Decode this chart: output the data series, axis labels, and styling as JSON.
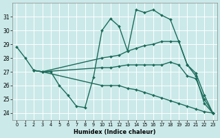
{
  "background_color": "#cbe9e9",
  "grid_color": "#b8d8d8",
  "line_color": "#1a6b5a",
  "xlabel": "Humidex (Indice chaleur)",
  "xlim": [
    -0.5,
    23.5
  ],
  "ylim": [
    23.5,
    32.0
  ],
  "yticks": [
    24,
    25,
    26,
    27,
    28,
    29,
    30,
    31
  ],
  "xticks": [
    0,
    1,
    2,
    3,
    4,
    5,
    6,
    7,
    8,
    9,
    10,
    11,
    12,
    13,
    14,
    15,
    16,
    17,
    18,
    19,
    20,
    21,
    22,
    23
  ],
  "lines": [
    {
      "x": [
        0,
        1,
        2,
        3,
        4,
        5,
        6,
        7,
        8,
        9,
        10,
        11,
        12,
        13,
        14,
        15,
        16,
        17,
        18,
        19,
        20,
        21,
        22,
        23
      ],
      "y": [
        28.8,
        28.0,
        27.1,
        27.0,
        27.0,
        26.0,
        25.3,
        24.5,
        24.4,
        26.6,
        30.0,
        30.85,
        30.3,
        28.5,
        31.5,
        31.3,
        31.5,
        31.1,
        30.8,
        29.2,
        27.5,
        26.9,
        25.3,
        24.0
      ]
    },
    {
      "x": [
        2,
        3,
        10,
        11,
        12,
        13,
        14,
        15,
        16,
        17,
        18,
        19,
        20,
        21,
        22,
        23
      ],
      "y": [
        27.1,
        27.0,
        28.0,
        28.1,
        28.2,
        28.5,
        28.7,
        28.9,
        29.0,
        29.2,
        29.2,
        29.2,
        27.5,
        26.7,
        24.7,
        24.0
      ]
    },
    {
      "x": [
        2,
        3,
        10,
        11,
        12,
        13,
        14,
        15,
        16,
        17,
        18,
        19,
        20,
        21,
        22,
        23
      ],
      "y": [
        27.1,
        27.0,
        27.3,
        27.3,
        27.4,
        27.5,
        27.5,
        27.5,
        27.5,
        27.5,
        27.7,
        27.5,
        26.7,
        26.5,
        25.0,
        24.0
      ]
    },
    {
      "x": [
        2,
        3,
        10,
        11,
        12,
        13,
        14,
        15,
        16,
        17,
        18,
        19,
        20,
        21,
        22,
        23
      ],
      "y": [
        27.1,
        27.0,
        26.0,
        26.0,
        26.0,
        25.8,
        25.7,
        25.5,
        25.3,
        25.1,
        24.9,
        24.7,
        24.5,
        24.3,
        24.1,
        24.0
      ]
    }
  ]
}
